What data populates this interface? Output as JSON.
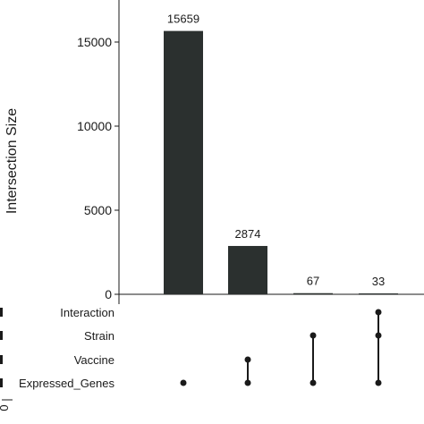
{
  "chart_data": {
    "type": "bar",
    "ylabel": "Intersection Size",
    "ylim": [
      0,
      17500
    ],
    "yticks": [
      0,
      5000,
      10000,
      15000
    ],
    "bar_color": "#2b302f",
    "dot_color": "#1a1a1a",
    "sets": [
      "Interaction",
      "Strain",
      "Vaccine",
      "Expressed_Genes"
    ],
    "intersections": [
      {
        "value": 15659,
        "label": "15659",
        "members": [
          "Expressed_Genes"
        ]
      },
      {
        "value": 2874,
        "label": "2874",
        "members": [
          "Vaccine",
          "Expressed_Genes"
        ]
      },
      {
        "value": 67,
        "label": "67",
        "members": [
          "Strain",
          "Expressed_Genes"
        ]
      },
      {
        "value": 33,
        "label": "33",
        "members": [
          "Interaction",
          "Strain",
          "Expressed_Genes"
        ]
      }
    ],
    "set_size_axis_label": "0"
  }
}
